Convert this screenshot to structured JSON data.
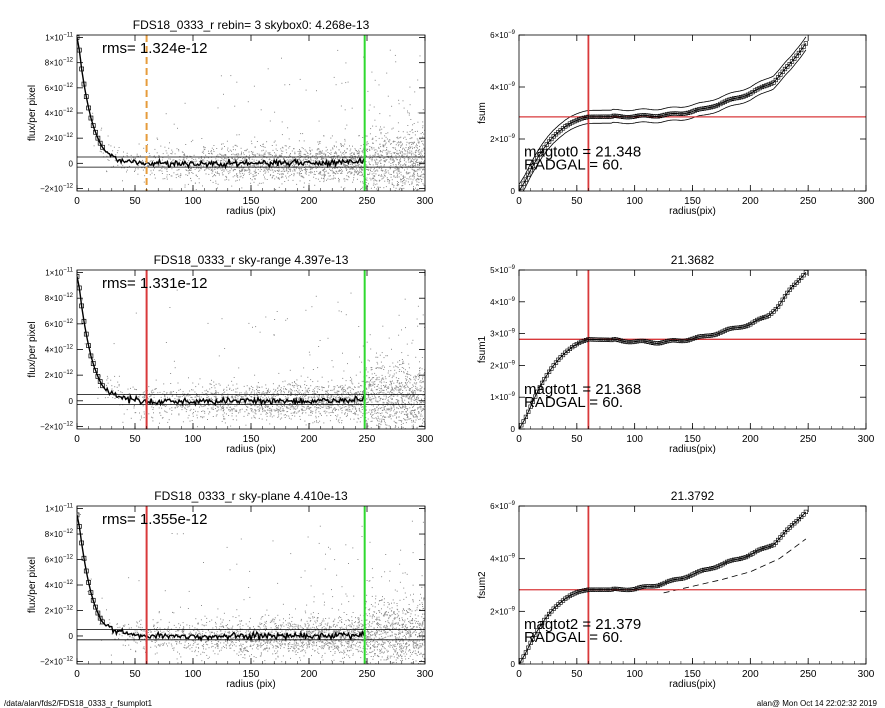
{
  "footer": {
    "path": "/data/alan/fds2/FDS18_0333_r_fsumplot1",
    "stamp": "alan@  Mon Oct 14 22:02:32 2019"
  },
  "colors": {
    "scatter": "#8c8c8c",
    "profile": "#000000",
    "inner_line_1": "#e69c3c",
    "inner_line": "#d9393b",
    "outer_line": "#2fd92f",
    "hline": "#d9393b",
    "frame": "#000000"
  },
  "chart_data": [
    {
      "id": "profile-1",
      "type": "scatter",
      "title": "FDS18_0333_r rebin= 3    skybox0:  4.268e-13",
      "xlabel": "radius (pix)",
      "ylabel": "flux/per pixel",
      "xlim": [
        0,
        300
      ],
      "ylim": [
        -2.2e-12,
        1.02e-11
      ],
      "xticks": [
        "0",
        "50",
        "100",
        "150",
        "200",
        "250",
        "300"
      ],
      "yticks": [
        {
          "v": -2e-12,
          "m": "−2×10",
          "e": "−12"
        },
        {
          "v": 0,
          "m": "0",
          "e": ""
        },
        {
          "v": 2e-12,
          "m": "2×10",
          "e": "−12"
        },
        {
          "v": 4e-12,
          "m": "4×10",
          "e": "−12"
        },
        {
          "v": 6e-12,
          "m": "6×10",
          "e": "−12"
        },
        {
          "v": 8e-12,
          "m": "8×10",
          "e": "−12"
        },
        {
          "v": 1e-11,
          "m": "1×10",
          "e": "−11"
        }
      ],
      "annotation": "rms= 1.324e-12",
      "inner_radius": 60,
      "inner_style": "dashed",
      "outer_radius": 248,
      "sky_band": [
        -3e-13,
        5e-13
      ],
      "scatter_rms": 1.324e-12,
      "profile_points": [
        [
          0,
          1e-11
        ],
        [
          2,
          9e-12
        ],
        [
          4,
          7.5e-12
        ],
        [
          6,
          6.3e-12
        ],
        [
          8,
          5.3e-12
        ],
        [
          10,
          4.4e-12
        ],
        [
          12,
          3.6e-12
        ],
        [
          15,
          2.7e-12
        ],
        [
          18,
          2e-12
        ],
        [
          21,
          1.4e-12
        ],
        [
          25,
          9e-13
        ],
        [
          30,
          6e-13
        ],
        [
          35,
          3e-13
        ],
        [
          40,
          2e-13
        ],
        [
          50,
          1e-13
        ],
        [
          60,
          0
        ],
        [
          80,
          0
        ],
        [
          100,
          -5e-14
        ],
        [
          150,
          0
        ],
        [
          200,
          0
        ],
        [
          248,
          1e-13
        ]
      ]
    },
    {
      "id": "fsum-0",
      "type": "line",
      "title": "",
      "xlabel": "radius(pix)",
      "ylabel": "fsum",
      "xlim": [
        0,
        300
      ],
      "ylim": [
        0,
        6e-09
      ],
      "xticks": [
        "0",
        "50",
        "100",
        "150",
        "200",
        "250",
        "300"
      ],
      "yticks": [
        {
          "v": 0,
          "m": "0",
          "e": ""
        },
        {
          "v": 2e-09,
          "m": "2×10",
          "e": "−9"
        },
        {
          "v": 4e-09,
          "m": "4×10",
          "e": "−9"
        },
        {
          "v": 6e-09,
          "m": "6×10",
          "e": "−9"
        }
      ],
      "annotations": [
        "magtot0 =  21.348",
        "RADGAL =     60."
      ],
      "vline": 60,
      "hline": 2.85e-09,
      "curve": [
        [
          0,
          0
        ],
        [
          5,
          3.5e-10
        ],
        [
          10,
          8e-10
        ],
        [
          15,
          1.2e-09
        ],
        [
          20,
          1.55e-09
        ],
        [
          25,
          1.85e-09
        ],
        [
          30,
          2.1e-09
        ],
        [
          35,
          2.3e-09
        ],
        [
          40,
          2.48e-09
        ],
        [
          45,
          2.62e-09
        ],
        [
          50,
          2.72e-09
        ],
        [
          55,
          2.8e-09
        ],
        [
          60,
          2.85e-09
        ],
        [
          80,
          2.86e-09
        ],
        [
          100,
          2.87e-09
        ],
        [
          120,
          2.9e-09
        ],
        [
          140,
          2.98e-09
        ],
        [
          160,
          3.15e-09
        ],
        [
          180,
          3.45e-09
        ],
        [
          200,
          3.75e-09
        ],
        [
          220,
          4.2e-09
        ],
        [
          235,
          4.9e-09
        ],
        [
          248,
          5.7e-09
        ]
      ],
      "envelope": 2.5e-10
    },
    {
      "id": "profile-2",
      "type": "scatter",
      "title": "FDS18_0333_r sky-range  4.397e-13",
      "xlabel": "radius (pix)",
      "ylabel": "flux/per pixel",
      "xlim": [
        0,
        300
      ],
      "ylim": [
        -2.2e-12,
        1.02e-11
      ],
      "xticks": [
        "0",
        "50",
        "100",
        "150",
        "200",
        "250",
        "300"
      ],
      "yticks": [
        {
          "v": -2e-12,
          "m": "−2×10",
          "e": "−12"
        },
        {
          "v": 0,
          "m": "0",
          "e": ""
        },
        {
          "v": 2e-12,
          "m": "2×10",
          "e": "−12"
        },
        {
          "v": 4e-12,
          "m": "4×10",
          "e": "−12"
        },
        {
          "v": 6e-12,
          "m": "6×10",
          "e": "−12"
        },
        {
          "v": 8e-12,
          "m": "8×10",
          "e": "−12"
        },
        {
          "v": 1e-11,
          "m": "1×10",
          "e": "−11"
        }
      ],
      "annotation": "rms= 1.331e-12",
      "inner_radius": 60,
      "inner_style": "solid",
      "outer_radius": 248,
      "sky_band": [
        -3e-13,
        5e-13
      ],
      "scatter_rms": 1.331e-12,
      "profile_points": [
        [
          0,
          9.7e-12
        ],
        [
          2,
          8.8e-12
        ],
        [
          4,
          7.4e-12
        ],
        [
          6,
          6.2e-12
        ],
        [
          8,
          5.2e-12
        ],
        [
          10,
          4.3e-12
        ],
        [
          12,
          3.5e-12
        ],
        [
          15,
          2.6e-12
        ],
        [
          18,
          1.9e-12
        ],
        [
          21,
          1.3e-12
        ],
        [
          25,
          8e-13
        ],
        [
          30,
          5e-13
        ],
        [
          35,
          3e-13
        ],
        [
          40,
          2e-13
        ],
        [
          50,
          1e-13
        ],
        [
          60,
          -1e-13
        ],
        [
          80,
          0
        ],
        [
          100,
          -5e-14
        ],
        [
          150,
          0
        ],
        [
          200,
          0
        ],
        [
          248,
          1e-13
        ]
      ]
    },
    {
      "id": "fsum-1",
      "type": "line",
      "title": "21.3682",
      "xlabel": "radius(pix)",
      "ylabel": "fsum1",
      "xlim": [
        0,
        300
      ],
      "ylim": [
        0,
        5e-09
      ],
      "xticks": [
        "0",
        "50",
        "100",
        "150",
        "200",
        "250",
        "300"
      ],
      "yticks": [
        {
          "v": 0,
          "m": "0",
          "e": ""
        },
        {
          "v": 1e-09,
          "m": "1×10",
          "e": "−9"
        },
        {
          "v": 2e-09,
          "m": "2×10",
          "e": "−9"
        },
        {
          "v": 3e-09,
          "m": "3×10",
          "e": "−9"
        },
        {
          "v": 4e-09,
          "m": "4×10",
          "e": "−9"
        },
        {
          "v": 5e-09,
          "m": "5×10",
          "e": "−9"
        }
      ],
      "annotations": [
        "magtot1 =  21.368",
        "RADGAL =     60."
      ],
      "vline": 60,
      "hline": 2.82e-09,
      "curve": [
        [
          0,
          0
        ],
        [
          5,
          3e-10
        ],
        [
          10,
          7e-10
        ],
        [
          15,
          1.1e-09
        ],
        [
          20,
          1.45e-09
        ],
        [
          25,
          1.75e-09
        ],
        [
          30,
          2e-09
        ],
        [
          35,
          2.22e-09
        ],
        [
          40,
          2.4e-09
        ],
        [
          45,
          2.55e-09
        ],
        [
          50,
          2.67e-09
        ],
        [
          55,
          2.76e-09
        ],
        [
          60,
          2.82e-09
        ],
        [
          80,
          2.8e-09
        ],
        [
          100,
          2.75e-09
        ],
        [
          120,
          2.72e-09
        ],
        [
          140,
          2.78e-09
        ],
        [
          160,
          2.9e-09
        ],
        [
          180,
          3.1e-09
        ],
        [
          200,
          3.3e-09
        ],
        [
          215,
          3.55e-09
        ],
        [
          225,
          3.9e-09
        ],
        [
          235,
          4.4e-09
        ],
        [
          248,
          4.95e-09
        ]
      ],
      "envelope": 0
    },
    {
      "id": "profile-3",
      "type": "scatter",
      "title": "FDS18_0333_r sky-plane  4.410e-13",
      "xlabel": "radius (pix)",
      "ylabel": "flux/per pixel",
      "xlim": [
        0,
        300
      ],
      "ylim": [
        -2.2e-12,
        1.02e-11
      ],
      "xticks": [
        "0",
        "50",
        "100",
        "150",
        "200",
        "250",
        "300"
      ],
      "yticks": [
        {
          "v": -2e-12,
          "m": "−2×10",
          "e": "−12"
        },
        {
          "v": 0,
          "m": "0",
          "e": ""
        },
        {
          "v": 2e-12,
          "m": "2×10",
          "e": "−12"
        },
        {
          "v": 4e-12,
          "m": "4×10",
          "e": "−12"
        },
        {
          "v": 6e-12,
          "m": "6×10",
          "e": "−12"
        },
        {
          "v": 8e-12,
          "m": "8×10",
          "e": "−12"
        },
        {
          "v": 1e-11,
          "m": "1×10",
          "e": "−11"
        }
      ],
      "annotation": "rms= 1.355e-12",
      "inner_radius": 60,
      "inner_style": "solid",
      "outer_radius": 248,
      "sky_band": [
        -3e-13,
        5e-13
      ],
      "scatter_rms": 1.355e-12,
      "profile_points": [
        [
          0,
          9.5e-12
        ],
        [
          2,
          8.6e-12
        ],
        [
          4,
          7.3e-12
        ],
        [
          6,
          6.1e-12
        ],
        [
          8,
          5.1e-12
        ],
        [
          10,
          4.2e-12
        ],
        [
          12,
          3.4e-12
        ],
        [
          15,
          2.5e-12
        ],
        [
          18,
          1.8e-12
        ],
        [
          21,
          1.2e-12
        ],
        [
          25,
          8e-13
        ],
        [
          30,
          5e-13
        ],
        [
          35,
          3e-13
        ],
        [
          40,
          2e-13
        ],
        [
          50,
          1e-13
        ],
        [
          60,
          0
        ],
        [
          80,
          0
        ],
        [
          100,
          -5e-14
        ],
        [
          150,
          0
        ],
        [
          200,
          0
        ],
        [
          248,
          1e-13
        ]
      ]
    },
    {
      "id": "fsum-2",
      "type": "line",
      "title": "21.3792",
      "xlabel": "radius(pix)",
      "ylabel": "fsum2",
      "xlim": [
        0,
        300
      ],
      "ylim": [
        0,
        6e-09
      ],
      "xticks": [
        "0",
        "50",
        "100",
        "150",
        "200",
        "250",
        "300"
      ],
      "yticks": [
        {
          "v": 0,
          "m": "0",
          "e": ""
        },
        {
          "v": 2e-09,
          "m": "2×10",
          "e": "−9"
        },
        {
          "v": 4e-09,
          "m": "4×10",
          "e": "−9"
        },
        {
          "v": 6e-09,
          "m": "6×10",
          "e": "−9"
        }
      ],
      "annotations": [
        "magtot2 =  21.379",
        "RADGAL =     60."
      ],
      "vline": 60,
      "hline": 2.82e-09,
      "curve": [
        [
          0,
          0
        ],
        [
          5,
          3.5e-10
        ],
        [
          10,
          8e-10
        ],
        [
          15,
          1.2e-09
        ],
        [
          20,
          1.55e-09
        ],
        [
          25,
          1.85e-09
        ],
        [
          30,
          2.1e-09
        ],
        [
          35,
          2.3e-09
        ],
        [
          40,
          2.48e-09
        ],
        [
          45,
          2.62e-09
        ],
        [
          50,
          2.72e-09
        ],
        [
          55,
          2.78e-09
        ],
        [
          60,
          2.82e-09
        ],
        [
          80,
          2.82e-09
        ],
        [
          100,
          2.85e-09
        ],
        [
          120,
          3e-09
        ],
        [
          140,
          3.25e-09
        ],
        [
          160,
          3.55e-09
        ],
        [
          180,
          3.85e-09
        ],
        [
          200,
          4.15e-09
        ],
        [
          220,
          4.55e-09
        ],
        [
          235,
          5.2e-09
        ],
        [
          248,
          5.8e-09
        ]
      ],
      "dashed_curve": [
        [
          125,
          2.7e-09
        ],
        [
          150,
          2.95e-09
        ],
        [
          175,
          3.2e-09
        ],
        [
          200,
          3.5e-09
        ],
        [
          225,
          4e-09
        ],
        [
          248,
          4.75e-09
        ]
      ],
      "envelope": 0
    }
  ]
}
